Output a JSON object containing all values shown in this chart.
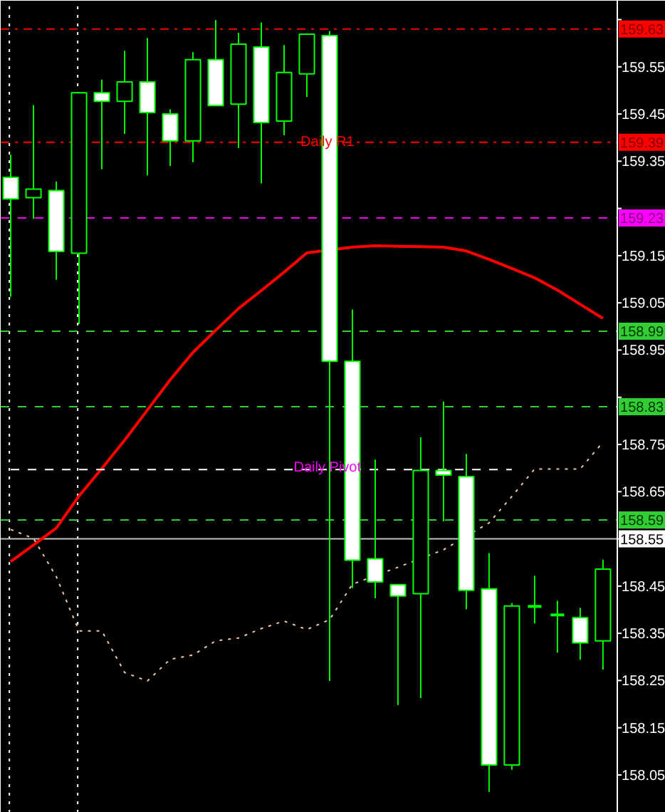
{
  "chart_data": {
    "type": "candlestick",
    "color": "#00ff00",
    "categories": [
      null,
      null,
      null,
      null,
      null,
      null,
      null,
      null,
      null,
      null,
      null,
      null,
      null,
      null,
      null,
      null,
      null,
      null,
      null,
      null,
      null,
      null,
      null,
      null,
      null,
      null,
      null
    ],
    "ohlc": [
      [
        159.316,
        159.364,
        159.063,
        159.27
      ],
      [
        159.273,
        159.469,
        159.228,
        159.291
      ],
      [
        159.288,
        159.307,
        159.099,
        159.159
      ],
      [
        159.155,
        159.497,
        159.005,
        159.495
      ],
      [
        159.495,
        159.523,
        159.333,
        159.477
      ],
      [
        159.477,
        159.584,
        159.408,
        159.518
      ],
      [
        159.518,
        159.611,
        159.32,
        159.453
      ],
      [
        159.45,
        159.46,
        159.34,
        159.393
      ],
      [
        159.393,
        159.581,
        159.348,
        159.565
      ],
      [
        159.565,
        159.649,
        159.468,
        159.468
      ],
      [
        159.471,
        159.622,
        159.378,
        159.598
      ],
      [
        159.592,
        159.644,
        159.303,
        159.432
      ],
      [
        159.435,
        159.596,
        159.405,
        159.538
      ],
      [
        159.535,
        159.621,
        159.486,
        159.619
      ],
      [
        159.616,
        159.626,
        158.249,
        158.926
      ],
      [
        158.926,
        159.036,
        158.446,
        158.505
      ],
      [
        158.508,
        158.718,
        158.424,
        158.459
      ],
      [
        158.453,
        158.453,
        158.198,
        158.429
      ],
      [
        158.434,
        158.765,
        158.213,
        158.695
      ],
      [
        158.695,
        158.841,
        158.587,
        158.685
      ],
      [
        158.682,
        158.73,
        158.401,
        158.441
      ],
      [
        158.444,
        158.52,
        158.014,
        158.071
      ],
      [
        158.071,
        158.414,
        158.061,
        158.408
      ],
      [
        158.407,
        158.472,
        158.371,
        158.407
      ],
      [
        158.389,
        158.419,
        158.309,
        158.389
      ],
      [
        158.383,
        158.404,
        158.294,
        158.33
      ],
      [
        158.334,
        158.506,
        158.273,
        158.486
      ]
    ],
    "series": [
      {
        "type": "line",
        "color": "#ff0000",
        "line_style": "solid",
        "values": [
          158.502,
          158.537,
          158.573,
          158.641,
          158.699,
          158.759,
          158.823,
          158.887,
          158.945,
          158.992,
          159.038,
          159.076,
          159.115,
          159.156,
          null,
          159.168,
          159.171,
          159.17,
          159.169,
          159.168,
          159.16,
          159.142,
          159.123,
          159.103,
          159.077,
          159.047,
          159.017
        ]
      },
      {
        "type": "line",
        "color": "#ffffff",
        "line_style": "dashed",
        "values": [
          158.697,
          158.697,
          158.697,
          158.697,
          158.697,
          158.697,
          158.697,
          158.697,
          158.697,
          158.697,
          158.697,
          158.697,
          158.697,
          158.697,
          158.697,
          null,
          158.697,
          158.697,
          158.697,
          158.697,
          158.697,
          158.697,
          158.697,
          null,
          null,
          null,
          null
        ]
      },
      {
        "type": "line",
        "color": "#f5c6a5",
        "line_style": "dotted",
        "values": [
          158.57,
          158.551,
          158.47,
          158.355,
          158.355,
          158.267,
          158.249,
          158.295,
          158.304,
          158.334,
          158.34,
          158.36,
          158.376,
          158.358,
          158.379,
          158.454,
          null,
          158.49,
          null,
          158.527,
          null,
          158.584,
          158.64,
          158.698,
          158.698,
          158.698,
          158.755
        ]
      }
    ],
    "ylim": [
      157.97,
      159.69
    ],
    "yticks": [
      158.05,
      158.15,
      158.25,
      158.35,
      158.45,
      158.55,
      158.65,
      158.75,
      {
        "value": 158.85,
        "label": null
      },
      158.95,
      159.05,
      159.15,
      {
        "value": 159.25,
        "label": null
      },
      159.35,
      159.45,
      159.55,
      {
        "value": 159.65,
        "label": null
      }
    ],
    "tick_labels": "y",
    "grid": false,
    "ref_lines": [
      {
        "axis": "y",
        "value": 159.63,
        "label": "159.63",
        "color": "#ff0000",
        "line_style": "dashdot"
      },
      {
        "axis": "y",
        "value": 159.39,
        "label": "159.39",
        "color": "#ff0000",
        "line_style": "dashdot"
      },
      {
        "axis": "y",
        "value": 159.23,
        "label": "159.23",
        "color": "#ff00ff",
        "line_style": "dashed"
      },
      {
        "axis": "y",
        "value": 158.99,
        "label": "158.99",
        "color": "#32cd32",
        "line_style": "dashed"
      },
      {
        "axis": "y",
        "value": 158.83,
        "label": "158.83",
        "color": "#32cd32",
        "line_style": "dashed"
      },
      {
        "axis": "y",
        "value": 158.59,
        "label": "158.59",
        "color": "#32cd32",
        "line_style": "dashed"
      },
      {
        "axis": "y",
        "value": 158.55,
        "label": "158.55",
        "color": "#c0c0c0",
        "line_style": "solid"
      }
    ],
    "annotations": [
      {
        "text": "Daily R1",
        "y": 159.39
      },
      {
        "text": "Daily Pivot",
        "y": 158.7
      }
    ]
  }
}
